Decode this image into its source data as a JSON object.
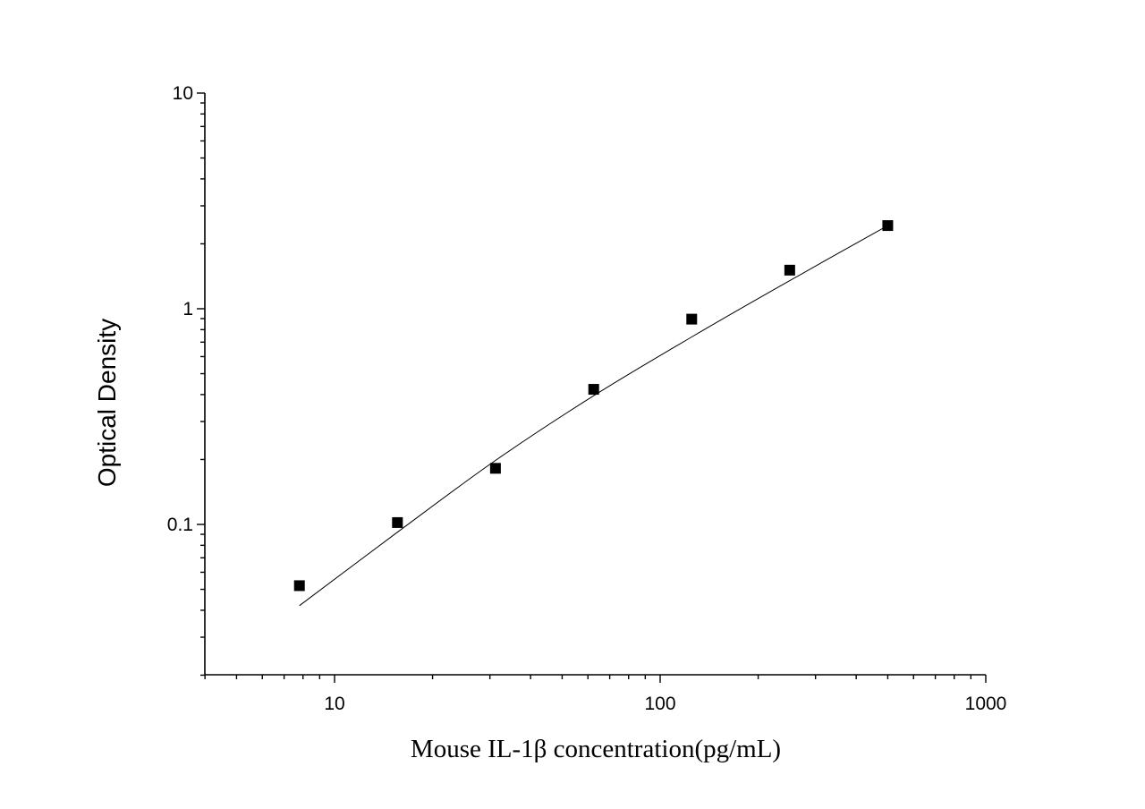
{
  "chart_data": {
    "type": "scatter",
    "xlabel": "Mouse IL-1β  concentration(pg/mL)",
    "ylabel": "Optical Density",
    "x_scale": "log",
    "y_scale": "log",
    "xlim": [
      4,
      1000
    ],
    "ylim": [
      0.02,
      10
    ],
    "x_ticks": [
      "10",
      "100",
      "1000"
    ],
    "y_ticks": [
      "0.1",
      "1",
      "10"
    ],
    "grid": false,
    "legend": "none",
    "series": [
      {
        "type": "scatter",
        "x": [
          7.8,
          15.6,
          31.2,
          62.5,
          125,
          250,
          500
        ],
        "y": [
          0.052,
          0.102,
          0.182,
          0.423,
          0.895,
          1.51,
          2.43
        ]
      },
      {
        "type": "line",
        "x": [
          7.8,
          15.6,
          31.2,
          62.5,
          125,
          250,
          500
        ],
        "y": [
          0.042,
          0.092,
          0.198,
          0.395,
          0.74,
          1.35,
          2.43
        ]
      }
    ],
    "colors": {
      "marker": "#000000",
      "curve": "#000000",
      "axis": "#000000"
    }
  }
}
